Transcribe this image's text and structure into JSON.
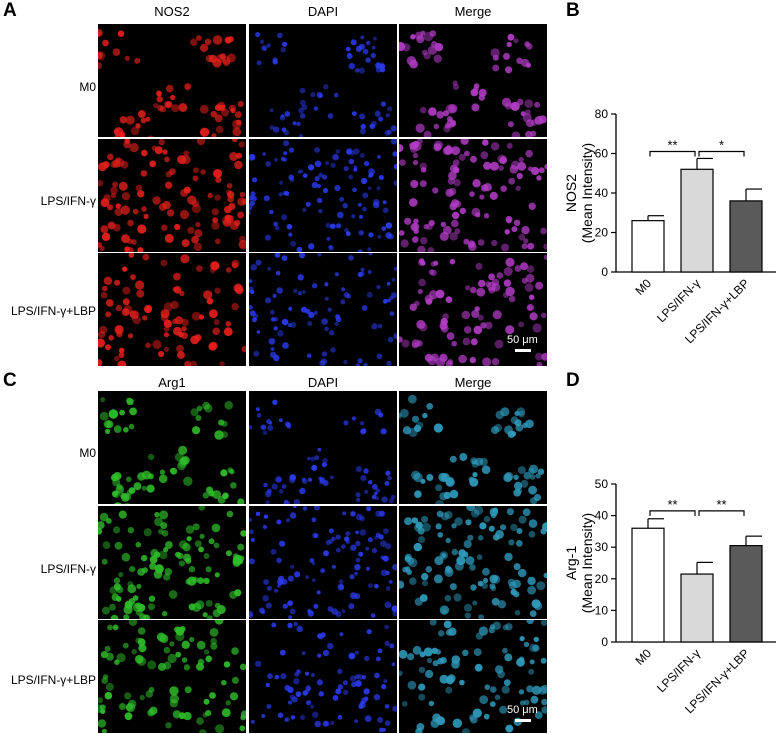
{
  "panels": {
    "A": "A",
    "B": "B",
    "C": "C",
    "D": "D"
  },
  "micrographs_top": {
    "columns": [
      "NOS2",
      "DAPI",
      "Merge"
    ],
    "rows": [
      "M0",
      "LPS/IFN-γ",
      "LPS/IFN-γ+LBP"
    ],
    "scale_bar": "50 μm",
    "colors": {
      "marker": "#e8201c",
      "dapi": "#2b3cf0",
      "merge": "#b43cc8"
    }
  },
  "micrographs_bottom": {
    "columns": [
      "Arg1",
      "DAPI",
      "Merge"
    ],
    "rows": [
      "M0",
      "LPS/IFN-γ",
      "LPS/IFN-γ+LBP"
    ],
    "scale_bar": "50 μm",
    "colors": {
      "marker": "#2fbe2a",
      "dapi": "#2b3cf0",
      "merge": "#2f9bbd"
    }
  },
  "chart_data": [
    {
      "type": "bar",
      "panel": "B",
      "categories": [
        "M0",
        "LPS/IFN-γ",
        "LPS/IFN-γ+LBP"
      ],
      "values": [
        26,
        52,
        36
      ],
      "errors": [
        2.5,
        5.5,
        6
      ],
      "bar_colors": [
        "#ffffff",
        "#d9d9d9",
        "#5a5a5a"
      ],
      "ylabel": [
        "NOS2",
        "(Mean Intensity)"
      ],
      "ylim": [
        0,
        80
      ],
      "yticks": [
        0,
        20,
        40,
        60,
        80
      ],
      "significance": [
        {
          "from": 0,
          "to": 1,
          "label": "**",
          "y": 61
        },
        {
          "from": 1,
          "to": 2,
          "label": "*",
          "y": 61
        }
      ]
    },
    {
      "type": "bar",
      "panel": "D",
      "categories": [
        "M0",
        "LPS/IFN-γ",
        "LPS/IFN-γ+LBP"
      ],
      "values": [
        36,
        21.5,
        30.5
      ],
      "errors": [
        3,
        3.7,
        3
      ],
      "bar_colors": [
        "#ffffff",
        "#d9d9d9",
        "#5a5a5a"
      ],
      "ylabel": [
        "Arg-1",
        "(Mean Intensity)"
      ],
      "ylim": [
        0,
        50
      ],
      "yticks": [
        0,
        10,
        20,
        30,
        40,
        50
      ],
      "significance": [
        {
          "from": 0,
          "to": 1,
          "label": "**",
          "y": 41.5
        },
        {
          "from": 1,
          "to": 2,
          "label": "**",
          "y": 41.5
        }
      ]
    }
  ]
}
